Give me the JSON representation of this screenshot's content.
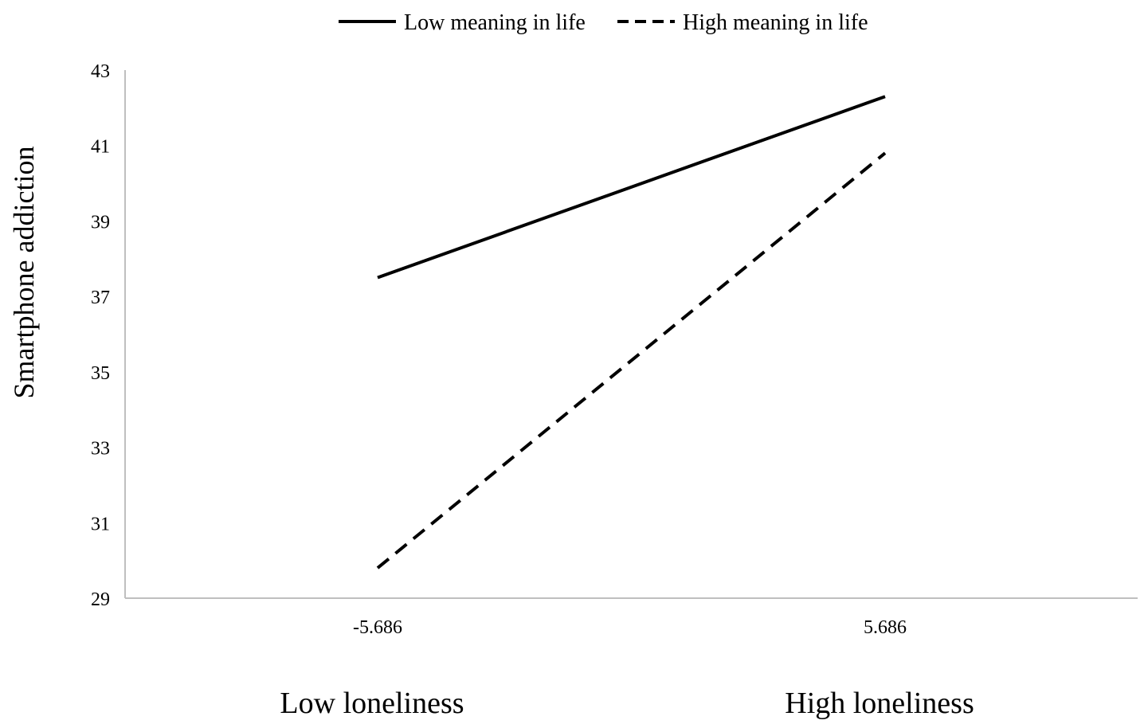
{
  "chart_data": {
    "type": "line",
    "x": [
      "-5.686",
      "5.686"
    ],
    "x_groups": [
      "Low loneliness",
      "High loneliness"
    ],
    "ylabel": "Smartphone addiction",
    "xlabel": "",
    "ylim": [
      29,
      43
    ],
    "yticks": [
      29,
      31,
      33,
      35,
      37,
      39,
      41,
      43
    ],
    "grid": false,
    "legend_position": "top-center",
    "series": [
      {
        "name": "Low meaning in life",
        "style": "solid",
        "color": "#000000",
        "values": [
          37.5,
          42.3
        ]
      },
      {
        "name": "High meaning in life",
        "style": "dashed",
        "color": "#000000",
        "values": [
          29.8,
          40.8
        ]
      }
    ]
  }
}
